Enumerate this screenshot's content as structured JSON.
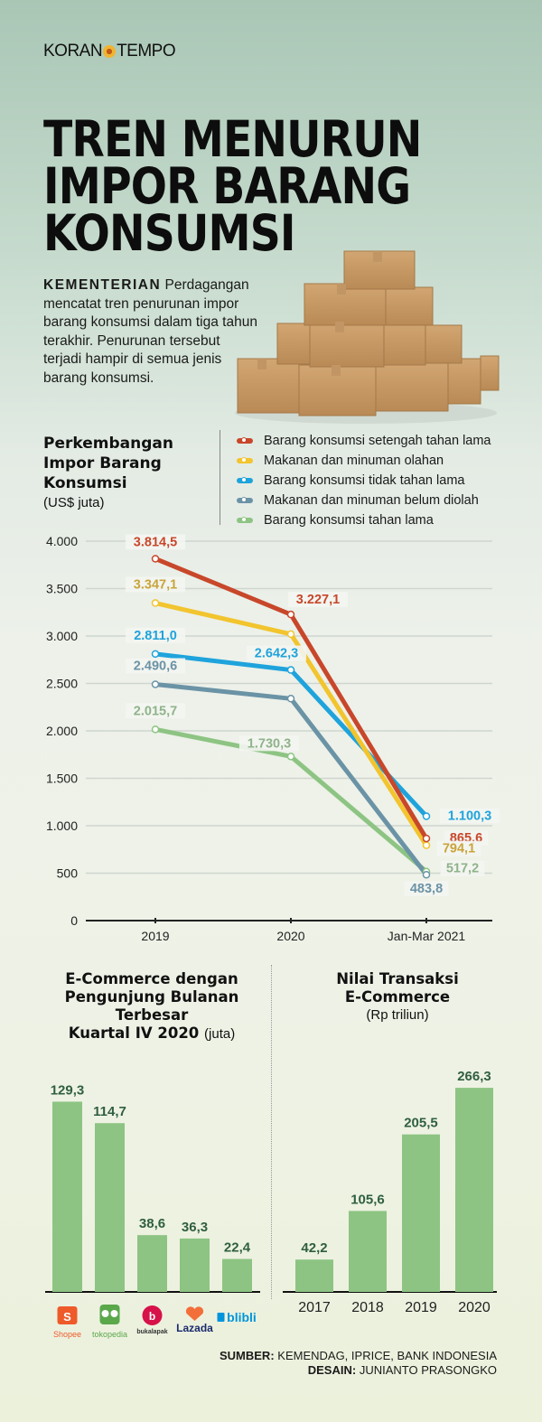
{
  "header": {
    "logo_left": "KORAN",
    "logo_right": "TEMPO",
    "title_lines": [
      "TREN MENURUN",
      "IMPOR BARANG",
      "KONSUMSI"
    ]
  },
  "intro": {
    "lead": "KEMENTERIAN",
    "text": "Perdagangan mencatat tren penurunan impor barang konsumsi dalam tiga tahun terakhir. Penurunan tersebut terjadi hampir di semua jenis barang konsumsi."
  },
  "illustration": {
    "icon": "cardboard-boxes-stack"
  },
  "colors": {
    "red": "#c8472a",
    "yellow": "#f2c42e",
    "blue": "#1fa3dc",
    "slate": "#6b93a6",
    "green": "#8dc483",
    "bar": "#8dc483",
    "bar_label": "#2f5f3f"
  },
  "chart_data": [
    {
      "type": "line",
      "title_lines": [
        "Perkembangan",
        "Impor Barang",
        "Konsumsi"
      ],
      "unit": "(US$ juta)",
      "categories": [
        "2019",
        "2020",
        "Jan-Mar 2021"
      ],
      "ylim": [
        0,
        4000
      ],
      "yticks": [
        0,
        500,
        1000,
        1500,
        2000,
        2500,
        3000,
        3500,
        4000
      ],
      "ytick_labels": [
        "0",
        "500",
        "1.000",
        "1.500",
        "2.000",
        "2.500",
        "3.000",
        "3.500",
        "4.000"
      ],
      "grid": true,
      "legend_position": "top-right",
      "series": [
        {
          "name": "Barang konsumsi setengah tahan lama",
          "color": "#c8472a",
          "values": [
            3814.5,
            3227.1,
            865.6
          ],
          "labels": [
            "3.814,5",
            "3.227,1",
            "865,6"
          ]
        },
        {
          "name": "Makanan dan minuman olahan",
          "color": "#f2c42e",
          "values": [
            3347.1,
            3020,
            794.1
          ],
          "labels": [
            "3.347,1",
            "",
            "794,1"
          ]
        },
        {
          "name": "Barang konsumsi tidak tahan lama",
          "color": "#1fa3dc",
          "values": [
            2811.0,
            2642.3,
            1100.3
          ],
          "labels": [
            "2.811,0",
            "2.642,3",
            "1.100,3"
          ]
        },
        {
          "name": "Makanan dan minuman belum diolah",
          "color": "#6b93a6",
          "values": [
            2490.6,
            2340,
            483.8
          ],
          "labels": [
            "2.490,6",
            "",
            "483,8"
          ]
        },
        {
          "name": "Barang konsumsi tahan lama",
          "color": "#8dc483",
          "values": [
            2015.7,
            1730.3,
            517.2
          ],
          "labels": [
            "2.015,7",
            "1.730,3",
            "517,2"
          ]
        }
      ]
    },
    {
      "type": "bar",
      "title_lines": [
        "E-Commerce dengan",
        "Pengunjung Bulanan",
        "Terbesar"
      ],
      "title_last_bold": "Kuartal IV 2020",
      "title_last_unit": "(juta)",
      "categories": [
        "Shopee",
        "tokopedia",
        "bukalapak",
        "Lazada",
        "blibli"
      ],
      "values": [
        129.3,
        114.7,
        38.6,
        36.3,
        22.4
      ],
      "labels": [
        "129,3",
        "114,7",
        "38,6",
        "36,3",
        "22,4"
      ],
      "ylim": [
        0,
        140
      ]
    },
    {
      "type": "bar",
      "title_lines": [
        "Nilai Transaksi",
        "E-Commerce"
      ],
      "unit": "(Rp triliun)",
      "categories": [
        "2017",
        "2018",
        "2019",
        "2020"
      ],
      "values": [
        42.2,
        105.6,
        205.5,
        266.3
      ],
      "labels": [
        "42,2",
        "105,6",
        "205,5",
        "266,3"
      ],
      "ylim": [
        0,
        290
      ]
    }
  ],
  "footer": {
    "source_label": "SUMBER:",
    "source_text": "KEMENDAG, IPRICE, BANK INDONESIA",
    "design_label": "DESAIN:",
    "design_text": "JUNIANTO PRASONGKO"
  }
}
